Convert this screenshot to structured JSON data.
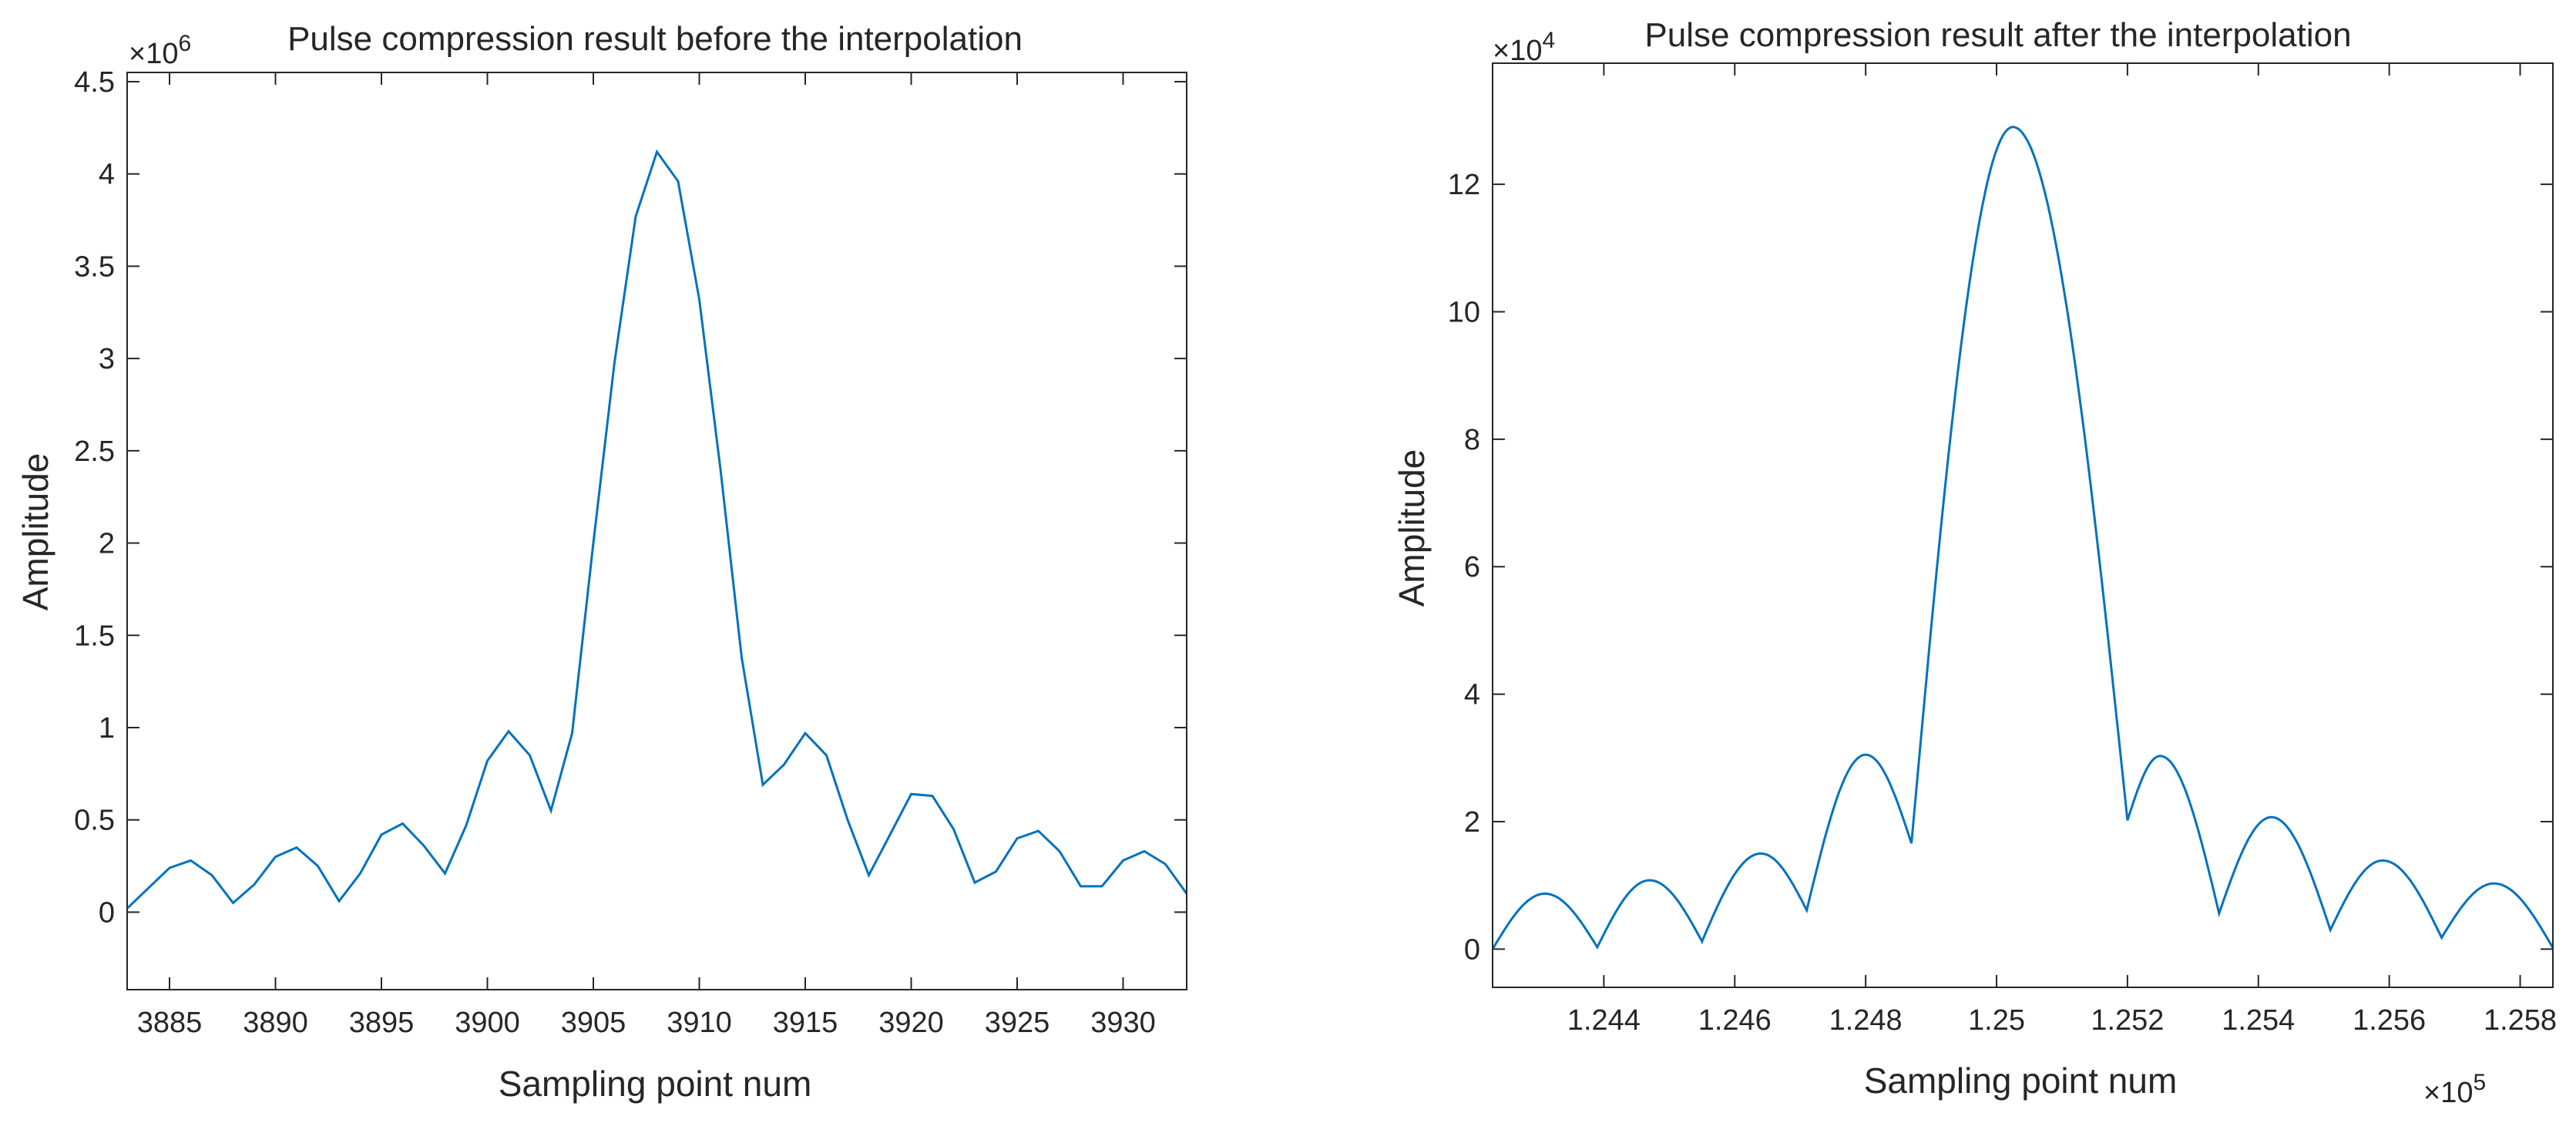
{
  "chart_data": [
    {
      "type": "line",
      "title": "Pulse compression result before the interpolation",
      "xlabel": "Sampling point num",
      "ylabel": "Amplitude",
      "y_multiplier": {
        "base": "×10",
        "exp": "6"
      },
      "xlim": [
        3883,
        3933
      ],
      "ylim": [
        -0.42,
        4.55
      ],
      "xticks": [
        3885,
        3890,
        3895,
        3900,
        3905,
        3910,
        3915,
        3920,
        3925,
        3930
      ],
      "xtick_labels": [
        "3885",
        "3890",
        "3895",
        "3900",
        "3905",
        "3910",
        "3915",
        "3920",
        "3925",
        "3930"
      ],
      "yticks": [
        0,
        0.5,
        1,
        1.5,
        2,
        2.5,
        3,
        3.5,
        4,
        4.5
      ],
      "ytick_labels": [
        "0",
        "0.5",
        "1",
        "1.5",
        "2",
        "2.5",
        "3",
        "3.5",
        "4",
        "4.5"
      ],
      "grid": false,
      "color": "#0072BD",
      "series": [
        {
          "x": [
            3883,
            3884,
            3885,
            3886,
            3887,
            3888,
            3889,
            3890,
            3891,
            3892,
            3893,
            3894,
            3895,
            3896,
            3897,
            3898,
            3899,
            3900,
            3901,
            3902,
            3903,
            3904,
            3905,
            3906,
            3907,
            3908,
            3909,
            3910,
            3911,
            3912,
            3913,
            3914,
            3915,
            3916,
            3917,
            3918,
            3919,
            3920,
            3921,
            3922,
            3923,
            3924,
            3925,
            3926,
            3927,
            3928,
            3929,
            3930,
            3931,
            3932,
            3933
          ],
          "values": [
            0.02,
            0.13,
            0.24,
            0.28,
            0.2,
            0.05,
            0.15,
            0.3,
            0.35,
            0.25,
            0.06,
            0.21,
            0.42,
            0.48,
            0.36,
            0.21,
            0.47,
            0.82,
            0.98,
            0.85,
            0.55,
            0.97,
            2.0,
            2.98,
            3.77,
            4.12,
            3.96,
            3.32,
            2.4,
            1.38,
            0.69,
            0.8,
            0.97,
            0.85,
            0.5,
            0.2,
            0.42,
            0.64,
            0.63,
            0.45,
            0.16,
            0.22,
            0.4,
            0.44,
            0.33,
            0.14,
            0.14,
            0.28,
            0.33,
            0.26,
            0.1
          ]
        }
      ]
    },
    {
      "type": "line",
      "title": "Pulse compression result after the interpolation",
      "xlabel": "Sampling point num",
      "ylabel": "Amplitude",
      "y_multiplier": {
        "base": "×10",
        "exp": "4"
      },
      "x_multiplier": {
        "base": "×10",
        "exp": "5"
      },
      "xlim": [
        1.2423,
        1.2585
      ],
      "ylim": [
        -0.6,
        13.9
      ],
      "xticks": [
        1.244,
        1.246,
        1.248,
        1.25,
        1.252,
        1.254,
        1.256,
        1.258
      ],
      "xtick_labels": [
        "1.244",
        "1.246",
        "1.248",
        "1.25",
        "1.252",
        "1.254",
        "1.256",
        "1.258"
      ],
      "yticks": [
        0,
        2,
        4,
        6,
        8,
        10,
        12
      ],
      "ytick_labels": [
        "0",
        "2",
        "4",
        "6",
        "8",
        "10",
        "12"
      ],
      "grid": false,
      "color": "#0072BD",
      "envelope_peaks": [
        {
          "x": 1.2431,
          "y": 8.7
        },
        {
          "x": 1.2447,
          "y": 10.8
        },
        {
          "x": 1.2464,
          "y": 15.0
        },
        {
          "x": 1.248,
          "y": 30.5
        },
        {
          "x": 1.25025,
          "y": 129.0
        },
        {
          "x": 1.2525,
          "y": 30.3
        },
        {
          "x": 1.2542,
          "y": 20.7
        },
        {
          "x": 1.2559,
          "y": 13.9
        },
        {
          "x": 1.2576,
          "y": 10.3
        }
      ],
      "envelope_nulls": [
        {
          "x": 1.2423,
          "y": 0.0
        },
        {
          "x": 1.2439,
          "y": 0.3
        },
        {
          "x": 1.2455,
          "y": 1.2
        },
        {
          "x": 1.2471,
          "y": 6.1
        },
        {
          "x": 1.2487,
          "y": 16.6
        },
        {
          "x": 1.252,
          "y": 20.2
        },
        {
          "x": 1.2534,
          "y": 5.6
        },
        {
          "x": 1.2551,
          "y": 3.0
        },
        {
          "x": 1.2568,
          "y": 1.8
        },
        {
          "x": 1.2585,
          "y": 0.2
        }
      ],
      "envelope_unit": "×10^3"
    }
  ]
}
